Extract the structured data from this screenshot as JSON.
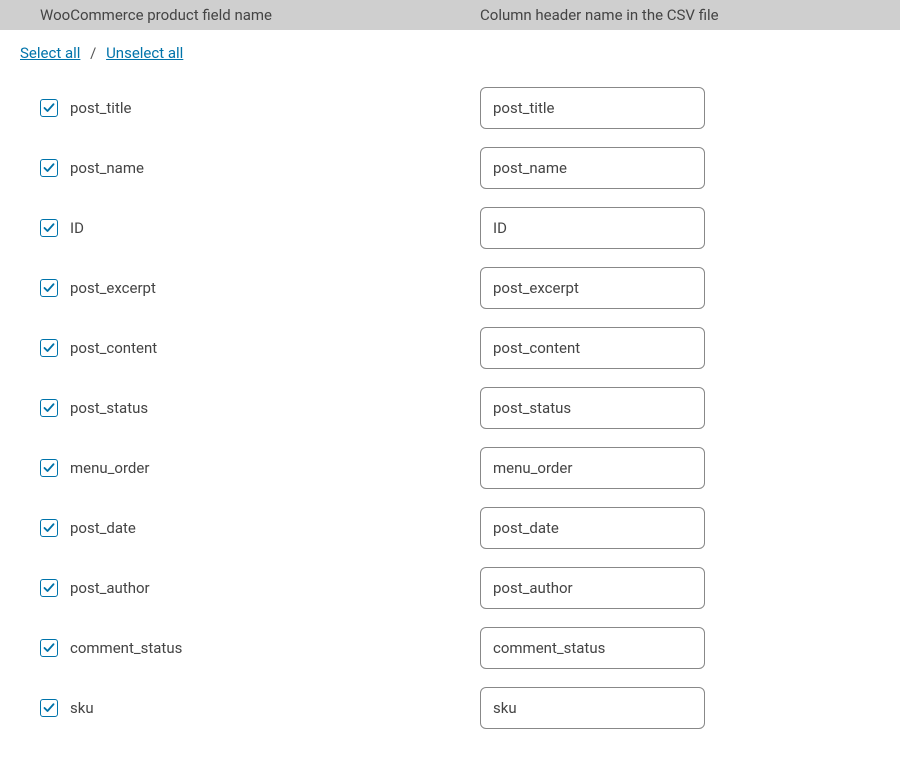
{
  "header": {
    "left": "WooCommerce product field name",
    "right": "Column header name in the CSV file"
  },
  "links": {
    "select_all": "Select all",
    "divider": "/",
    "unselect_all": "Unselect all"
  },
  "rows": [
    {
      "checked": true,
      "label": "post_title",
      "value": "post_title"
    },
    {
      "checked": true,
      "label": "post_name",
      "value": "post_name"
    },
    {
      "checked": true,
      "label": "ID",
      "value": "ID"
    },
    {
      "checked": true,
      "label": "post_excerpt",
      "value": "post_excerpt"
    },
    {
      "checked": true,
      "label": "post_content",
      "value": "post_content"
    },
    {
      "checked": true,
      "label": "post_status",
      "value": "post_status"
    },
    {
      "checked": true,
      "label": "menu_order",
      "value": "menu_order"
    },
    {
      "checked": true,
      "label": "post_date",
      "value": "post_date"
    },
    {
      "checked": true,
      "label": "post_author",
      "value": "post_author"
    },
    {
      "checked": true,
      "label": "comment_status",
      "value": "comment_status"
    },
    {
      "checked": true,
      "label": "sku",
      "value": "sku"
    }
  ],
  "colors": {
    "header_bg": "#cfcfcf",
    "link": "#0073aa",
    "checkbox_border": "#0073aa",
    "check_fill": "#0073aa",
    "input_border": "#888"
  }
}
